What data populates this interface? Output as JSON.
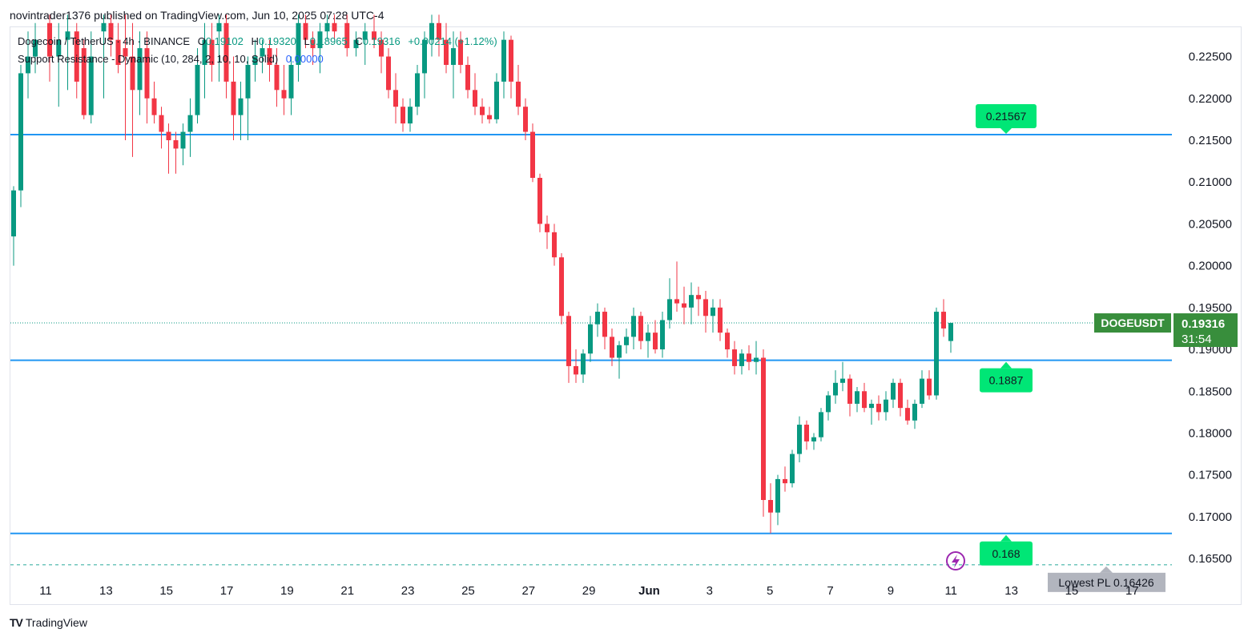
{
  "header": {
    "publisher_line": "novintrader1376 published on TradingView.com, Jun 10, 2025 07:28 UTC-4"
  },
  "legend": {
    "symbol": "Dogecoin / TetherUS · 4h · BINANCE",
    "o_label": "O",
    "o_value": "0.19102",
    "h_label": "H",
    "h_value": "0.19320",
    "l_label": "L",
    "l_value": "0.18965",
    "c_label": "C",
    "c_value": "0.19316",
    "change": "+0.00214 (+1.12%)",
    "indicator": "Support Resistance - Dynamic (10, 284, 2, 10, 10, Solid)",
    "indicator_value": "0.00000"
  },
  "footer": {
    "brand": "TradingView",
    "logo": "TV"
  },
  "colors": {
    "up": "#089981",
    "down": "#f23645",
    "level_line": "#2196f3",
    "level_label": "#00e676",
    "price_tag": "#388e3c",
    "lowest_tag": "#b2b5be"
  },
  "chart_data": {
    "type": "candlestick",
    "symbol_tag": "DOGEUSDT",
    "last_price": "0.19316",
    "countdown": "31:54",
    "y_ticks": [
      "0.22500",
      "0.22000",
      "0.21500",
      "0.21000",
      "0.20500",
      "0.20000",
      "0.19500",
      "0.19000",
      "0.18500",
      "0.18000",
      "0.17500",
      "0.17000",
      "0.16500"
    ],
    "x_ticks": [
      "11",
      "13",
      "15",
      "17",
      "19",
      "21",
      "23",
      "25",
      "27",
      "29",
      "Jun",
      "3",
      "5",
      "7",
      "9",
      "11",
      "13",
      "15",
      "17"
    ],
    "ylim": [
      0.163,
      0.2285
    ],
    "levels": [
      {
        "value": 0.21567,
        "label": "0.21567"
      },
      {
        "value": 0.1887,
        "label": "0.1887"
      },
      {
        "value": 0.168,
        "label": "0.168"
      }
    ],
    "lowest": {
      "value": 0.16426,
      "label": "Lowest PL 0.16426"
    },
    "candles": [
      {
        "x": 0.0,
        "o": 0.2035,
        "h": 0.2095,
        "l": 0.2,
        "c": 0.209
      },
      {
        "x": 0.4,
        "o": 0.209,
        "h": 0.224,
        "l": 0.207,
        "c": 0.223
      },
      {
        "x": 0.8,
        "o": 0.223,
        "h": 0.228,
        "l": 0.22,
        "c": 0.225
      },
      {
        "x": 1.2,
        "o": 0.225,
        "h": 0.229,
        "l": 0.223,
        "c": 0.227
      },
      {
        "x": 2.0,
        "o": 0.229,
        "h": 0.23,
        "l": 0.222,
        "c": 0.225
      },
      {
        "x": 2.5,
        "o": 0.225,
        "h": 0.229,
        "l": 0.219,
        "c": 0.227
      },
      {
        "x": 3.0,
        "o": 0.227,
        "h": 0.23,
        "l": 0.221,
        "c": 0.228
      },
      {
        "x": 3.5,
        "o": 0.228,
        "h": 0.229,
        "l": 0.22,
        "c": 0.222
      },
      {
        "x": 3.9,
        "o": 0.226,
        "h": 0.227,
        "l": 0.2175,
        "c": 0.218
      },
      {
        "x": 4.3,
        "o": 0.218,
        "h": 0.228,
        "l": 0.217,
        "c": 0.225
      },
      {
        "x": 5.0,
        "o": 0.228,
        "h": 0.23,
        "l": 0.22,
        "c": 0.229
      },
      {
        "x": 5.4,
        "o": 0.229,
        "h": 0.23,
        "l": 0.225,
        "c": 0.227
      },
      {
        "x": 5.8,
        "o": 0.227,
        "h": 0.229,
        "l": 0.223,
        "c": 0.224
      },
      {
        "x": 6.2,
        "o": 0.226,
        "h": 0.23,
        "l": 0.215,
        "c": 0.225
      },
      {
        "x": 6.6,
        "o": 0.225,
        "h": 0.229,
        "l": 0.213,
        "c": 0.221
      },
      {
        "x": 7.0,
        "o": 0.221,
        "h": 0.228,
        "l": 0.218,
        "c": 0.226
      },
      {
        "x": 7.4,
        "o": 0.226,
        "h": 0.228,
        "l": 0.217,
        "c": 0.22
      },
      {
        "x": 7.8,
        "o": 0.22,
        "h": 0.222,
        "l": 0.217,
        "c": 0.218
      },
      {
        "x": 8.2,
        "o": 0.218,
        "h": 0.219,
        "l": 0.214,
        "c": 0.216
      },
      {
        "x": 8.6,
        "o": 0.216,
        "h": 0.217,
        "l": 0.211,
        "c": 0.215
      },
      {
        "x": 9.0,
        "o": 0.215,
        "h": 0.216,
        "l": 0.211,
        "c": 0.214
      },
      {
        "x": 9.4,
        "o": 0.214,
        "h": 0.217,
        "l": 0.212,
        "c": 0.216
      },
      {
        "x": 9.8,
        "o": 0.216,
        "h": 0.22,
        "l": 0.213,
        "c": 0.218
      },
      {
        "x": 10.2,
        "o": 0.218,
        "h": 0.226,
        "l": 0.217,
        "c": 0.224
      },
      {
        "x": 10.6,
        "o": 0.224,
        "h": 0.229,
        "l": 0.22,
        "c": 0.227
      },
      {
        "x": 11.0,
        "o": 0.227,
        "h": 0.229,
        "l": 0.222,
        "c": 0.224
      },
      {
        "x": 11.4,
        "o": 0.228,
        "h": 0.23,
        "l": 0.222,
        "c": 0.229
      },
      {
        "x": 11.8,
        "o": 0.229,
        "h": 0.23,
        "l": 0.22,
        "c": 0.222
      },
      {
        "x": 12.2,
        "o": 0.222,
        "h": 0.225,
        "l": 0.215,
        "c": 0.218
      },
      {
        "x": 12.6,
        "o": 0.218,
        "h": 0.222,
        "l": 0.215,
        "c": 0.22
      },
      {
        "x": 13.0,
        "o": 0.22,
        "h": 0.225,
        "l": 0.215,
        "c": 0.224
      },
      {
        "x": 13.4,
        "o": 0.224,
        "h": 0.227,
        "l": 0.222,
        "c": 0.225
      },
      {
        "x": 13.8,
        "o": 0.225,
        "h": 0.227,
        "l": 0.223,
        "c": 0.226
      },
      {
        "x": 14.2,
        "o": 0.226,
        "h": 0.227,
        "l": 0.222,
        "c": 0.224
      },
      {
        "x": 14.6,
        "o": 0.224,
        "h": 0.226,
        "l": 0.219,
        "c": 0.221
      },
      {
        "x": 15.0,
        "o": 0.221,
        "h": 0.224,
        "l": 0.218,
        "c": 0.22
      },
      {
        "x": 15.4,
        "o": 0.22,
        "h": 0.225,
        "l": 0.218,
        "c": 0.224
      },
      {
        "x": 15.8,
        "o": 0.224,
        "h": 0.23,
        "l": 0.222,
        "c": 0.229
      },
      {
        "x": 16.2,
        "o": 0.229,
        "h": 0.23,
        "l": 0.226,
        "c": 0.227
      },
      {
        "x": 16.6,
        "o": 0.227,
        "h": 0.228,
        "l": 0.224,
        "c": 0.226
      },
      {
        "x": 17.0,
        "o": 0.226,
        "h": 0.229,
        "l": 0.223,
        "c": 0.228
      },
      {
        "x": 17.4,
        "o": 0.228,
        "h": 0.23,
        "l": 0.227,
        "c": 0.229
      },
      {
        "x": 17.8,
        "o": 0.229,
        "h": 0.23,
        "l": 0.227,
        "c": 0.228
      },
      {
        "x": 18.5,
        "o": 0.229,
        "h": 0.23,
        "l": 0.225,
        "c": 0.226
      },
      {
        "x": 19.0,
        "o": 0.226,
        "h": 0.228,
        "l": 0.225,
        "c": 0.227
      },
      {
        "x": 19.5,
        "o": 0.227,
        "h": 0.229,
        "l": 0.224,
        "c": 0.228
      },
      {
        "x": 20.0,
        "o": 0.228,
        "h": 0.23,
        "l": 0.226,
        "c": 0.227
      },
      {
        "x": 20.4,
        "o": 0.227,
        "h": 0.228,
        "l": 0.223,
        "c": 0.225
      },
      {
        "x": 20.8,
        "o": 0.225,
        "h": 0.226,
        "l": 0.22,
        "c": 0.221
      },
      {
        "x": 21.2,
        "o": 0.221,
        "h": 0.223,
        "l": 0.217,
        "c": 0.219
      },
      {
        "x": 21.6,
        "o": 0.219,
        "h": 0.22,
        "l": 0.216,
        "c": 0.217
      },
      {
        "x": 22.0,
        "o": 0.217,
        "h": 0.22,
        "l": 0.216,
        "c": 0.219
      },
      {
        "x": 22.4,
        "o": 0.219,
        "h": 0.224,
        "l": 0.218,
        "c": 0.223
      },
      {
        "x": 22.8,
        "o": 0.223,
        "h": 0.228,
        "l": 0.22,
        "c": 0.227
      },
      {
        "x": 23.2,
        "o": 0.227,
        "h": 0.23,
        "l": 0.225,
        "c": 0.229
      },
      {
        "x": 23.6,
        "o": 0.229,
        "h": 0.23,
        "l": 0.225,
        "c": 0.227
      },
      {
        "x": 24.0,
        "o": 0.227,
        "h": 0.229,
        "l": 0.223,
        "c": 0.224
      },
      {
        "x": 24.4,
        "o": 0.224,
        "h": 0.228,
        "l": 0.22,
        "c": 0.226
      },
      {
        "x": 24.8,
        "o": 0.227,
        "h": 0.228,
        "l": 0.223,
        "c": 0.224
      },
      {
        "x": 25.2,
        "o": 0.224,
        "h": 0.225,
        "l": 0.22,
        "c": 0.221
      },
      {
        "x": 25.6,
        "o": 0.221,
        "h": 0.223,
        "l": 0.218,
        "c": 0.219
      },
      {
        "x": 26.0,
        "o": 0.219,
        "h": 0.22,
        "l": 0.217,
        "c": 0.218
      },
      {
        "x": 26.4,
        "o": 0.218,
        "h": 0.219,
        "l": 0.217,
        "c": 0.2175
      },
      {
        "x": 26.8,
        "o": 0.2175,
        "h": 0.223,
        "l": 0.217,
        "c": 0.222
      },
      {
        "x": 27.2,
        "o": 0.222,
        "h": 0.228,
        "l": 0.22,
        "c": 0.227
      },
      {
        "x": 27.6,
        "o": 0.227,
        "h": 0.2275,
        "l": 0.22,
        "c": 0.222
      },
      {
        "x": 28.0,
        "o": 0.222,
        "h": 0.224,
        "l": 0.218,
        "c": 0.219
      },
      {
        "x": 28.4,
        "o": 0.219,
        "h": 0.22,
        "l": 0.215,
        "c": 0.216
      },
      {
        "x": 28.8,
        "o": 0.216,
        "h": 0.217,
        "l": 0.21,
        "c": 0.2105
      },
      {
        "x": 29.2,
        "o": 0.2105,
        "h": 0.211,
        "l": 0.204,
        "c": 0.205
      },
      {
        "x": 29.6,
        "o": 0.205,
        "h": 0.206,
        "l": 0.202,
        "c": 0.204
      },
      {
        "x": 30.0,
        "o": 0.204,
        "h": 0.205,
        "l": 0.2,
        "c": 0.201
      },
      {
        "x": 30.4,
        "o": 0.201,
        "h": 0.2015,
        "l": 0.193,
        "c": 0.194
      },
      {
        "x": 30.8,
        "o": 0.194,
        "h": 0.1945,
        "l": 0.186,
        "c": 0.188
      },
      {
        "x": 31.2,
        "o": 0.188,
        "h": 0.19,
        "l": 0.186,
        "c": 0.187
      },
      {
        "x": 31.6,
        "o": 0.187,
        "h": 0.19,
        "l": 0.186,
        "c": 0.1895
      },
      {
        "x": 32.0,
        "o": 0.1895,
        "h": 0.194,
        "l": 0.1885,
        "c": 0.193
      },
      {
        "x": 32.4,
        "o": 0.193,
        "h": 0.1955,
        "l": 0.1915,
        "c": 0.1945
      },
      {
        "x": 32.8,
        "o": 0.1945,
        "h": 0.195,
        "l": 0.19,
        "c": 0.1915
      },
      {
        "x": 33.2,
        "o": 0.1915,
        "h": 0.1925,
        "l": 0.188,
        "c": 0.189
      },
      {
        "x": 33.6,
        "o": 0.189,
        "h": 0.191,
        "l": 0.1865,
        "c": 0.1905
      },
      {
        "x": 34.0,
        "o": 0.1905,
        "h": 0.1925,
        "l": 0.1895,
        "c": 0.1915
      },
      {
        "x": 34.4,
        "o": 0.1915,
        "h": 0.195,
        "l": 0.19,
        "c": 0.194
      },
      {
        "x": 34.8,
        "o": 0.194,
        "h": 0.1945,
        "l": 0.19,
        "c": 0.191
      },
      {
        "x": 35.2,
        "o": 0.191,
        "h": 0.193,
        "l": 0.189,
        "c": 0.192
      },
      {
        "x": 35.6,
        "o": 0.192,
        "h": 0.1935,
        "l": 0.1895,
        "c": 0.19
      },
      {
        "x": 36.0,
        "o": 0.19,
        "h": 0.1945,
        "l": 0.189,
        "c": 0.1935
      },
      {
        "x": 36.4,
        "o": 0.1935,
        "h": 0.1985,
        "l": 0.1925,
        "c": 0.196
      },
      {
        "x": 36.8,
        "o": 0.196,
        "h": 0.2005,
        "l": 0.1945,
        "c": 0.1955
      },
      {
        "x": 37.2,
        "o": 0.1955,
        "h": 0.1975,
        "l": 0.193,
        "c": 0.195
      },
      {
        "x": 37.6,
        "o": 0.195,
        "h": 0.198,
        "l": 0.193,
        "c": 0.1965
      },
      {
        "x": 38.0,
        "o": 0.1965,
        "h": 0.1975,
        "l": 0.194,
        "c": 0.196
      },
      {
        "x": 38.4,
        "o": 0.196,
        "h": 0.197,
        "l": 0.192,
        "c": 0.194
      },
      {
        "x": 38.8,
        "o": 0.194,
        "h": 0.196,
        "l": 0.192,
        "c": 0.195
      },
      {
        "x": 39.2,
        "o": 0.195,
        "h": 0.196,
        "l": 0.191,
        "c": 0.192
      },
      {
        "x": 39.6,
        "o": 0.192,
        "h": 0.1925,
        "l": 0.189,
        "c": 0.19
      },
      {
        "x": 40.0,
        "o": 0.19,
        "h": 0.191,
        "l": 0.187,
        "c": 0.188
      },
      {
        "x": 40.4,
        "o": 0.188,
        "h": 0.19,
        "l": 0.187,
        "c": 0.1895
      },
      {
        "x": 40.8,
        "o": 0.1895,
        "h": 0.1905,
        "l": 0.1875,
        "c": 0.1885
      },
      {
        "x": 41.2,
        "o": 0.1885,
        "h": 0.191,
        "l": 0.187,
        "c": 0.189
      },
      {
        "x": 41.6,
        "o": 0.189,
        "h": 0.19,
        "l": 0.17,
        "c": 0.172
      },
      {
        "x": 42.0,
        "o": 0.172,
        "h": 0.174,
        "l": 0.168,
        "c": 0.1705
      },
      {
        "x": 42.4,
        "o": 0.1705,
        "h": 0.175,
        "l": 0.169,
        "c": 0.1745
      },
      {
        "x": 42.8,
        "o": 0.1745,
        "h": 0.176,
        "l": 0.173,
        "c": 0.174
      },
      {
        "x": 43.2,
        "o": 0.174,
        "h": 0.178,
        "l": 0.1735,
        "c": 0.1775
      },
      {
        "x": 43.6,
        "o": 0.1775,
        "h": 0.182,
        "l": 0.1765,
        "c": 0.181
      },
      {
        "x": 44.0,
        "o": 0.181,
        "h": 0.1815,
        "l": 0.178,
        "c": 0.179
      },
      {
        "x": 44.4,
        "o": 0.179,
        "h": 0.18,
        "l": 0.178,
        "c": 0.1795
      },
      {
        "x": 44.8,
        "o": 0.1795,
        "h": 0.183,
        "l": 0.179,
        "c": 0.1825
      },
      {
        "x": 45.2,
        "o": 0.1825,
        "h": 0.185,
        "l": 0.1815,
        "c": 0.1845
      },
      {
        "x": 45.6,
        "o": 0.1845,
        "h": 0.1875,
        "l": 0.1835,
        "c": 0.186
      },
      {
        "x": 46.0,
        "o": 0.186,
        "h": 0.1885,
        "l": 0.185,
        "c": 0.1865
      },
      {
        "x": 46.4,
        "o": 0.1865,
        "h": 0.187,
        "l": 0.182,
        "c": 0.1835
      },
      {
        "x": 46.8,
        "o": 0.1835,
        "h": 0.1855,
        "l": 0.1825,
        "c": 0.185
      },
      {
        "x": 47.2,
        "o": 0.185,
        "h": 0.186,
        "l": 0.1825,
        "c": 0.183
      },
      {
        "x": 47.6,
        "o": 0.183,
        "h": 0.184,
        "l": 0.181,
        "c": 0.1835
      },
      {
        "x": 48.0,
        "o": 0.1835,
        "h": 0.1845,
        "l": 0.1815,
        "c": 0.1825
      },
      {
        "x": 48.4,
        "o": 0.1825,
        "h": 0.185,
        "l": 0.1815,
        "c": 0.184
      },
      {
        "x": 48.8,
        "o": 0.184,
        "h": 0.1865,
        "l": 0.183,
        "c": 0.186
      },
      {
        "x": 49.2,
        "o": 0.186,
        "h": 0.1865,
        "l": 0.182,
        "c": 0.183
      },
      {
        "x": 49.6,
        "o": 0.183,
        "h": 0.184,
        "l": 0.181,
        "c": 0.1815
      },
      {
        "x": 50.0,
        "o": 0.1815,
        "h": 0.184,
        "l": 0.1805,
        "c": 0.1835
      },
      {
        "x": 50.4,
        "o": 0.1835,
        "h": 0.1875,
        "l": 0.183,
        "c": 0.1865
      },
      {
        "x": 50.8,
        "o": 0.1865,
        "h": 0.1875,
        "l": 0.184,
        "c": 0.1845
      },
      {
        "x": 51.2,
        "o": 0.1845,
        "h": 0.195,
        "l": 0.184,
        "c": 0.1945
      },
      {
        "x": 51.6,
        "o": 0.1945,
        "h": 0.196,
        "l": 0.1915,
        "c": 0.1925
      },
      {
        "x": 52.0,
        "o": 0.191,
        "h": 0.1932,
        "l": 0.1896,
        "c": 0.19316
      }
    ]
  }
}
